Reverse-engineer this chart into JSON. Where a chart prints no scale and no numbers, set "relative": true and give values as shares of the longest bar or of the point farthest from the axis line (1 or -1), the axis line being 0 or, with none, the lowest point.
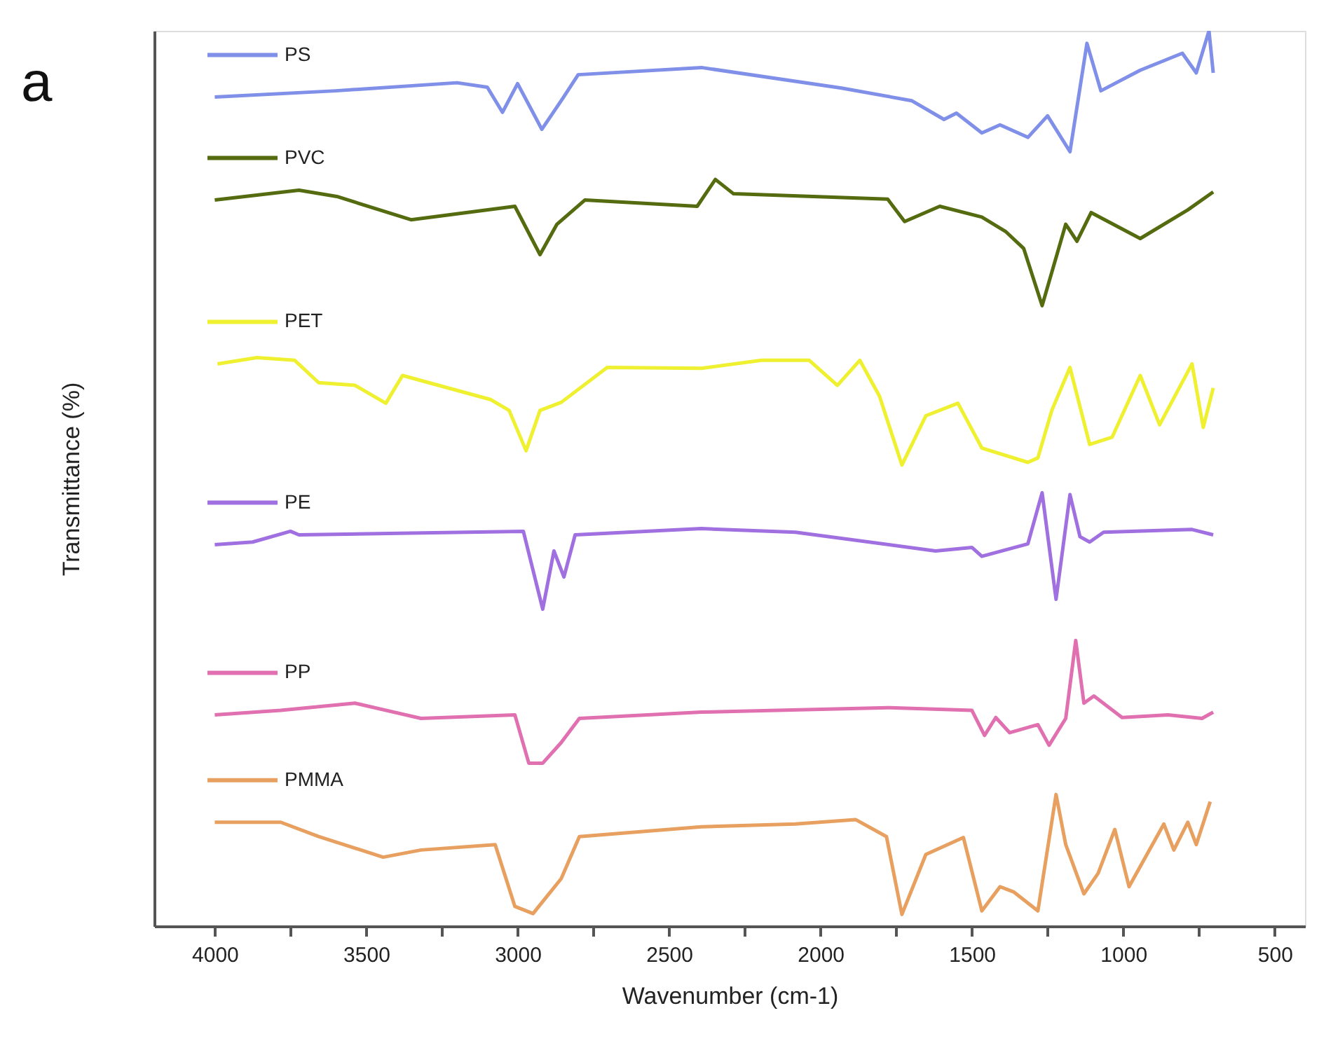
{
  "chart_data": {
    "type": "line",
    "relative": true,
    "xlabel": "Wavenumber (cm-1)",
    "ylabel": "Transmittance (%)",
    "annotations": [
      "a"
    ],
    "xlim": [
      4200,
      400
    ],
    "xticks": [
      4000,
      {
        "value": 3750,
        "label": null
      },
      3500,
      {
        "value": 3250,
        "label": null
      },
      3000,
      {
        "value": 2750,
        "label": null
      },
      2500,
      {
        "value": 2250,
        "label": null
      },
      2000,
      {
        "value": 1750,
        "label": null
      },
      1500,
      {
        "value": 1250,
        "label": null
      },
      1000,
      {
        "value": 750,
        "label": null
      },
      500
    ],
    "grid": false,
    "legend": "left",
    "marker": "none",
    "line_style": "solid",
    "series": [
      {
        "name": "PS",
        "color": "#8090e8",
        "x": [
          4000,
          3600,
          3200,
          3100,
          3050,
          3000,
          2920,
          2850,
          2800,
          2393,
          1930,
          1699,
          1592,
          1551,
          1467,
          1407,
          1315,
          1250,
          1176,
          1120,
          1074,
          944,
          805,
          759,
          717,
          703
        ],
        "values": [
          0.926,
          0.933,
          0.942,
          0.937,
          0.909,
          0.941,
          0.89,
          0.925,
          0.951,
          0.959,
          0.936,
          0.922,
          0.901,
          0.908,
          0.886,
          0.895,
          0.881,
          0.905,
          0.865,
          0.986,
          0.933,
          0.956,
          0.975,
          0.953,
          1.0,
          0.953
        ]
      },
      {
        "name": "PVC",
        "color": "#556b10",
        "x": [
          4000,
          3722,
          3597,
          3352,
          3009,
          2926,
          2870,
          2778,
          2407,
          2347,
          2287,
          1778,
          1722,
          1606,
          1467,
          1389,
          1329,
          1268,
          1190,
          1153,
          1106,
          944,
          787,
          703
        ],
        "values": [
          0.811,
          0.822,
          0.815,
          0.789,
          0.804,
          0.75,
          0.784,
          0.811,
          0.804,
          0.834,
          0.818,
          0.812,
          0.787,
          0.804,
          0.792,
          0.776,
          0.757,
          0.693,
          0.784,
          0.765,
          0.797,
          0.768,
          0.8,
          0.82
        ]
      },
      {
        "name": "PET",
        "color": "#eef030",
        "x": [
          3991,
          3861,
          3736,
          3657,
          3537,
          3435,
          3380,
          3088,
          3028,
          2972,
          2926,
          2856,
          2704,
          2393,
          2194,
          2037,
          1944,
          1870,
          1805,
          1731,
          1652,
          1546,
          1467,
          1315,
          1282,
          1236,
          1176,
          1111,
          1037,
          944,
          880,
          773,
          736,
          703
        ],
        "values": [
          0.628,
          0.635,
          0.632,
          0.607,
          0.604,
          0.584,
          0.615,
          0.588,
          0.576,
          0.531,
          0.576,
          0.585,
          0.624,
          0.623,
          0.632,
          0.632,
          0.604,
          0.632,
          0.592,
          0.515,
          0.57,
          0.584,
          0.534,
          0.518,
          0.523,
          0.576,
          0.624,
          0.538,
          0.546,
          0.615,
          0.56,
          0.628,
          0.557,
          0.601
        ]
      },
      {
        "name": "PE",
        "color": "#a070e0",
        "x": [
          4000,
          3875,
          3750,
          3722,
          2981,
          2917,
          2880,
          2847,
          2810,
          2393,
          2083,
          1620,
          1500,
          1467,
          1315,
          1268,
          1222,
          1176,
          1143,
          1111,
          1065,
          773,
          703
        ],
        "values": [
          0.426,
          0.429,
          0.441,
          0.437,
          0.441,
          0.354,
          0.419,
          0.39,
          0.437,
          0.444,
          0.44,
          0.419,
          0.423,
          0.413,
          0.427,
          0.484,
          0.365,
          0.482,
          0.435,
          0.429,
          0.44,
          0.443,
          0.437
        ]
      },
      {
        "name": "PP",
        "color": "#e070b0",
        "x": [
          4000,
          3782,
          3537,
          3319,
          3009,
          2963,
          2917,
          2856,
          2796,
          2393,
          1778,
          1500,
          1458,
          1421,
          1375,
          1282,
          1245,
          1190,
          1157,
          1130,
          1097,
          1004,
          852,
          740,
          703
        ],
        "values": [
          0.236,
          0.241,
          0.249,
          0.232,
          0.236,
          0.182,
          0.182,
          0.205,
          0.232,
          0.239,
          0.244,
          0.241,
          0.213,
          0.233,
          0.216,
          0.225,
          0.202,
          0.232,
          0.319,
          0.249,
          0.257,
          0.233,
          0.236,
          0.232,
          0.239
        ]
      },
      {
        "name": "PMMA",
        "color": "#e8a060",
        "x": [
          4000,
          3782,
          3657,
          3444,
          3319,
          3074,
          3009,
          2949,
          2856,
          2796,
          2393,
          2083,
          1884,
          1782,
          1731,
          1652,
          1528,
          1467,
          1407,
          1361,
          1282,
          1222,
          1190,
          1130,
          1083,
          1028,
          981,
          866,
          833,
          787,
          759,
          713
        ],
        "values": [
          0.116,
          0.116,
          0.1,
          0.077,
          0.085,
          0.091,
          0.022,
          0.014,
          0.053,
          0.1,
          0.111,
          0.114,
          0.119,
          0.1,
          0.013,
          0.08,
          0.099,
          0.017,
          0.044,
          0.038,
          0.017,
          0.147,
          0.091,
          0.036,
          0.059,
          0.108,
          0.044,
          0.114,
          0.085,
          0.116,
          0.091,
          0.139
        ]
      }
    ]
  }
}
